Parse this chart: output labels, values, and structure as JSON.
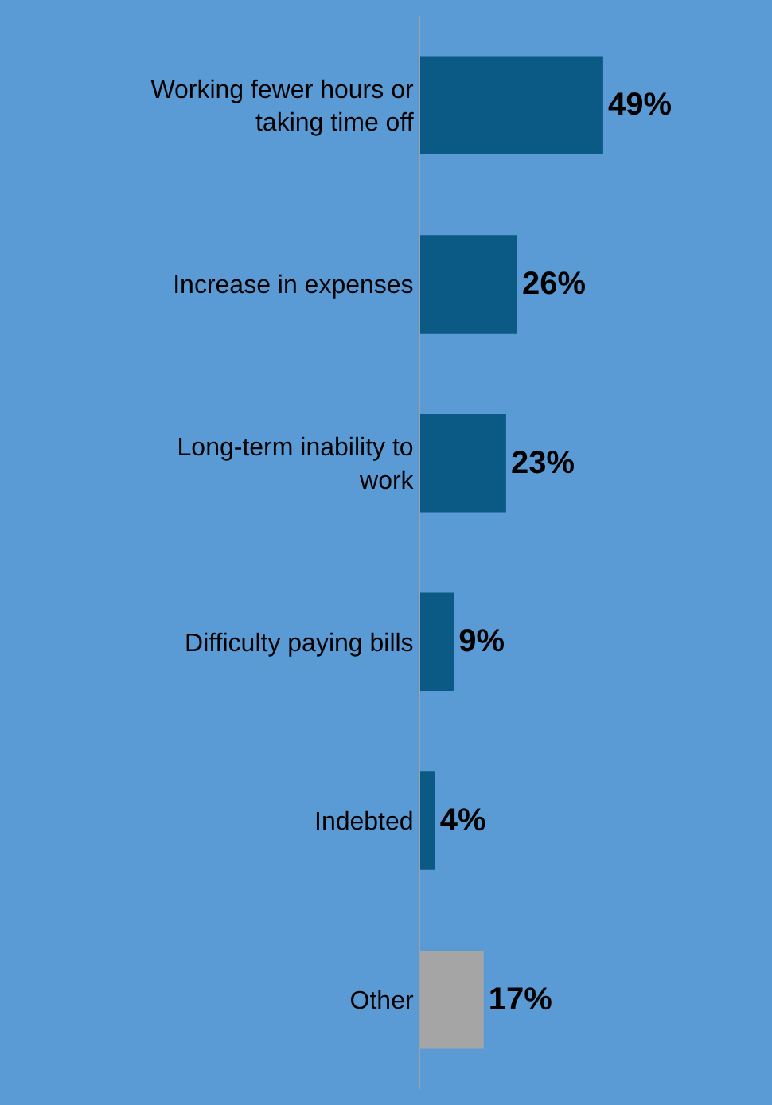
{
  "chart_data": {
    "type": "bar",
    "orientation": "horizontal",
    "categories": [
      "Working fewer hours or taking time off",
      "Increase in expenses",
      "Long-term inability to work",
      "Difficulty paying bills",
      "Indebted",
      "Other"
    ],
    "values": [
      49,
      26,
      23,
      9,
      4,
      17
    ],
    "colors": [
      "#0b5a86",
      "#0b5a86",
      "#0b5a86",
      "#0b5a86",
      "#0b5a86",
      "#a5a5a5"
    ],
    "value_labels": [
      "49%",
      "26%",
      "23%",
      "9%",
      "4%",
      "17%"
    ],
    "tick_labels": "y",
    "grid": false,
    "legend": false
  }
}
